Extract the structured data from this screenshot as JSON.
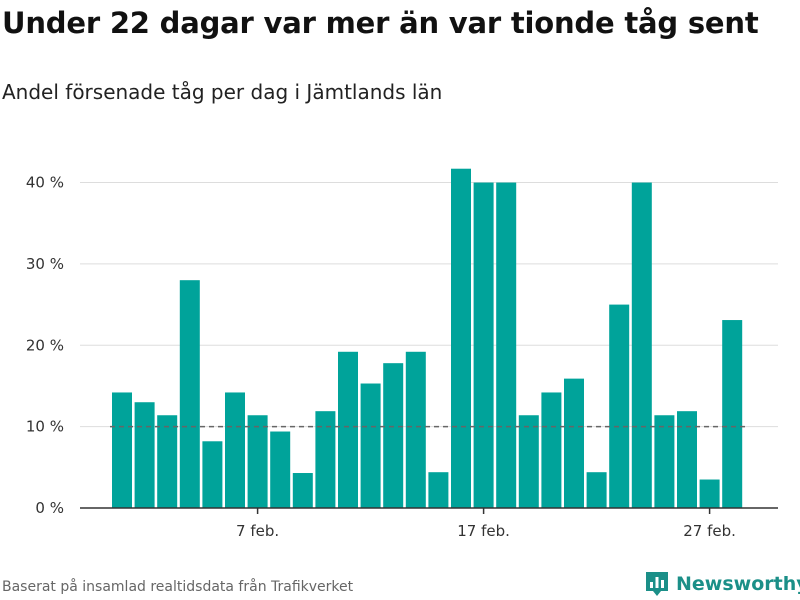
{
  "header": {
    "title": "Under 22 dagar var mer än var tionde tåg sent",
    "subtitle": "Andel försenade tåg per dag i Jämtlands län"
  },
  "footer": {
    "source": "Baserat på insamlad realtidsdata från Trafikverket",
    "brand_name": "Newsworthy",
    "brand_icon": "newsworthy-logo-icon"
  },
  "colors": {
    "bar": "#00a39a",
    "reference_line": "#666666",
    "grid": "#dddddd",
    "axis": "#333333",
    "brand": "#1b8f88"
  },
  "chart_data": {
    "type": "bar",
    "title": "Under 22 dagar var mer än var tionde tåg sent",
    "subtitle": "Andel försenade tåg per dag i Jämtlands län",
    "x": [
      "2024-02-01",
      "2024-02-02",
      "2024-02-03",
      "2024-02-04",
      "2024-02-05",
      "2024-02-06",
      "2024-02-07",
      "2024-02-08",
      "2024-02-09",
      "2024-02-10",
      "2024-02-11",
      "2024-02-12",
      "2024-02-13",
      "2024-02-14",
      "2024-02-15",
      "2024-02-16",
      "2024-02-17",
      "2024-02-18",
      "2024-02-19",
      "2024-02-20",
      "2024-02-21",
      "2024-02-22",
      "2024-02-23",
      "2024-02-24",
      "2024-02-25",
      "2024-02-26",
      "2024-02-27",
      "2024-02-28"
    ],
    "values": [
      14.2,
      13.0,
      11.4,
      28.0,
      8.2,
      14.2,
      11.4,
      9.4,
      4.3,
      11.9,
      19.2,
      15.3,
      17.8,
      19.2,
      4.4,
      41.7,
      40.0,
      40.0,
      11.4,
      14.2,
      15.9,
      4.4,
      25.0,
      40.0,
      11.4,
      11.9,
      3.5,
      23.1
    ],
    "ylim": [
      0,
      44
    ],
    "y_ticks": [
      {
        "value": 0,
        "label": "0 %"
      },
      {
        "value": 10,
        "label": "10 %"
      },
      {
        "value": 20,
        "label": "20 %"
      },
      {
        "value": 30,
        "label": "30 %"
      },
      {
        "value": 40,
        "label": "40 %"
      }
    ],
    "x_ticks": [
      {
        "value": "2024-02-07",
        "label": "7 feb."
      },
      {
        "value": "2024-02-17",
        "label": "17 feb."
      },
      {
        "value": "2024-02-27",
        "label": "27 feb."
      }
    ],
    "reference_line": {
      "value": 10,
      "style": "dashed"
    },
    "xlabel": "",
    "ylabel": "",
    "grid": true,
    "legend": "none"
  }
}
